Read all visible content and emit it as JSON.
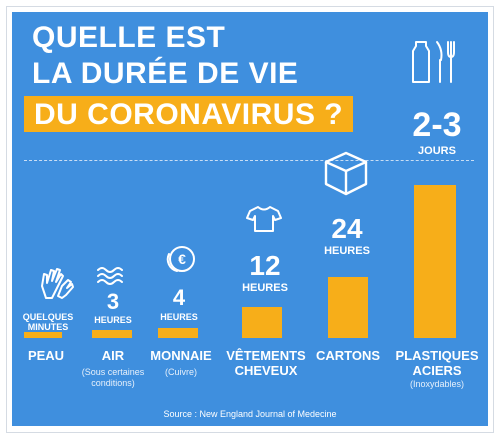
{
  "title": {
    "line1": "QUELLE EST",
    "line2": "LA DURÉE DE VIE",
    "highlight": "DU CORONAVIRUS ?"
  },
  "chart_data": {
    "type": "bar",
    "title": "QUELLE EST LA DURÉE DE VIE DU CORONAVIRUS ?",
    "unit": "heures",
    "categories": [
      "PEAU",
      "AIR",
      "MONNAIE",
      "VÊTEMENTS CHEVEUX",
      "CARTONS",
      "PLASTIQUES ACIERS"
    ],
    "values": [
      0.1,
      3,
      4,
      12,
      24,
      60
    ],
    "bars": [
      {
        "category": "PEAU",
        "value_hours": 0.1,
        "number": "",
        "unit": "QUELQUES MINUTES",
        "subtitle": "",
        "icon": "hands-icon"
      },
      {
        "category": "AIR",
        "value_hours": 3,
        "number": "3",
        "unit": "HEURES",
        "subtitle": "(Sous certaines conditions)",
        "icon": "waves-icon"
      },
      {
        "category": "MONNAIE",
        "value_hours": 4,
        "number": "4",
        "unit": "HEURES",
        "subtitle": "(Cuivre)",
        "icon": "euro-coin-icon"
      },
      {
        "category": "VÊTEMENTS",
        "category2": "CHEVEUX",
        "value_hours": 12,
        "number": "12",
        "unit": "HEURES",
        "subtitle": "",
        "icon": "tshirt-icon"
      },
      {
        "category": "CARTONS",
        "value_hours": 24,
        "number": "24",
        "unit": "HEURES",
        "subtitle": "",
        "icon": "box-icon"
      },
      {
        "category": "PLASTIQUES",
        "category2": "ACIERS",
        "value_hours": 60,
        "number": "2-3",
        "unit": "JOURS",
        "subtitle": "(Inoxydables)",
        "icon": "bottle-cutlery-icon"
      }
    ],
    "ylim": [
      0,
      72
    ],
    "grid": false,
    "reference_line": "dashed",
    "colors": {
      "bar": "#f7ae19",
      "background": "#3f8fde",
      "text": "#ffffff"
    }
  },
  "source": "Source : New England Journal of Medecine"
}
